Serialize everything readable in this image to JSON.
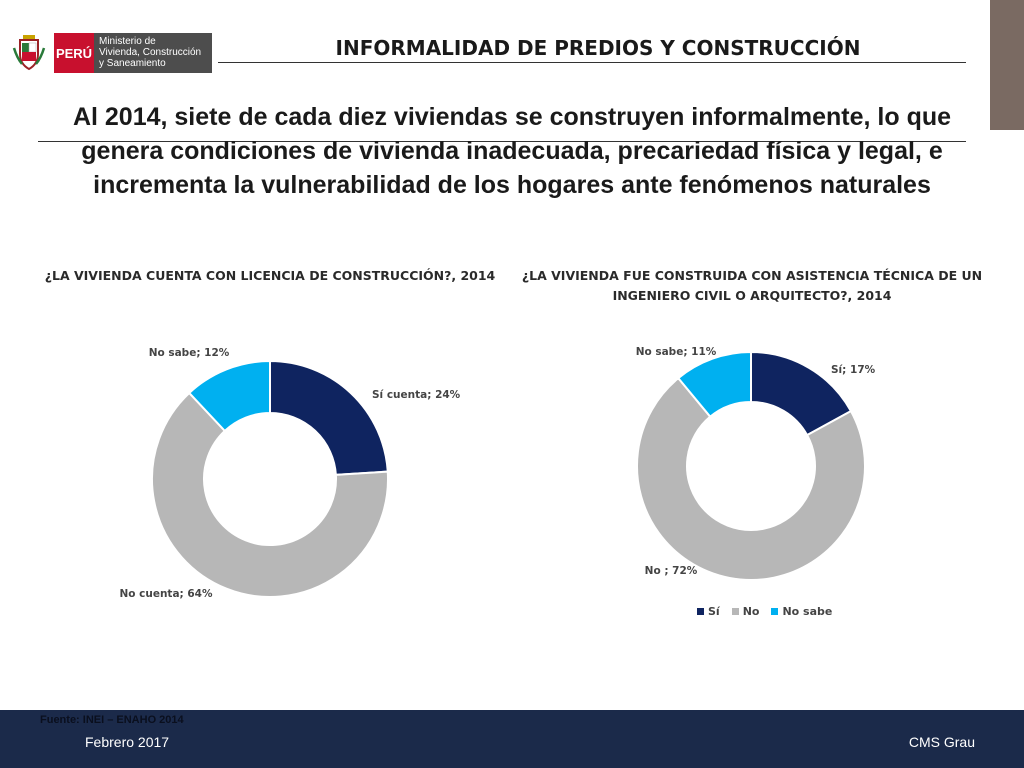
{
  "header": {
    "logo": {
      "country": "PERÚ",
      "ministry_lines": [
        "Ministerio de",
        "Vivienda, Construcción",
        "y Saneamiento"
      ]
    },
    "title": "INFORMALIDAD DE PREDIOS Y CONSTRUCCIÓN"
  },
  "subtitle": "Al 2014, siete de cada diez viviendas se construyen informalmente, lo que genera condiciones de vivienda inadecuada, precariedad física y legal, e incrementa la vulnerabilidad de los hogares ante fenómenos naturales",
  "colors": {
    "navy": "#0f2460",
    "gray": "#b7b7b7",
    "cyan": "#00b0f0",
    "footer": "#1b2a4a"
  },
  "chart_data": [
    {
      "type": "pie",
      "subtype": "donut",
      "title": "¿LA VIVIENDA CUENTA CON LICENCIA DE CONSTRUCCIÓN?, 2014",
      "slices": [
        {
          "name": "Sí cuenta",
          "value": 24,
          "label": "Sí cuenta; 24%",
          "color": "#0f2460"
        },
        {
          "name": "No cuenta",
          "value": 64,
          "label": "No cuenta; 64%",
          "color": "#b7b7b7"
        },
        {
          "name": "No sabe",
          "value": 12,
          "label": "No sabe; 12%",
          "color": "#00b0f0"
        }
      ],
      "legend": "none"
    },
    {
      "type": "pie",
      "subtype": "donut",
      "title": "¿LA VIVIENDA FUE CONSTRUIDA CON ASISTENCIA TÉCNICA DE UN INGENIERO CIVIL O ARQUITECTO?, 2014",
      "slices": [
        {
          "name": "Sí",
          "value": 17,
          "label": "Sí; 17%",
          "color": "#0f2460"
        },
        {
          "name": "No",
          "value": 72,
          "label": "No ; 72%",
          "color": "#b7b7b7"
        },
        {
          "name": "No sabe",
          "value": 11,
          "label": "No sabe; 11%",
          "color": "#00b0f0"
        }
      ],
      "legend": "bottom",
      "legend_items": [
        "Sí",
        "No",
        "No sabe"
      ]
    }
  ],
  "footer": {
    "source": "Fuente: INEI – ENAHO 2014",
    "date": "Febrero 2017",
    "author": "CMS Grau"
  }
}
